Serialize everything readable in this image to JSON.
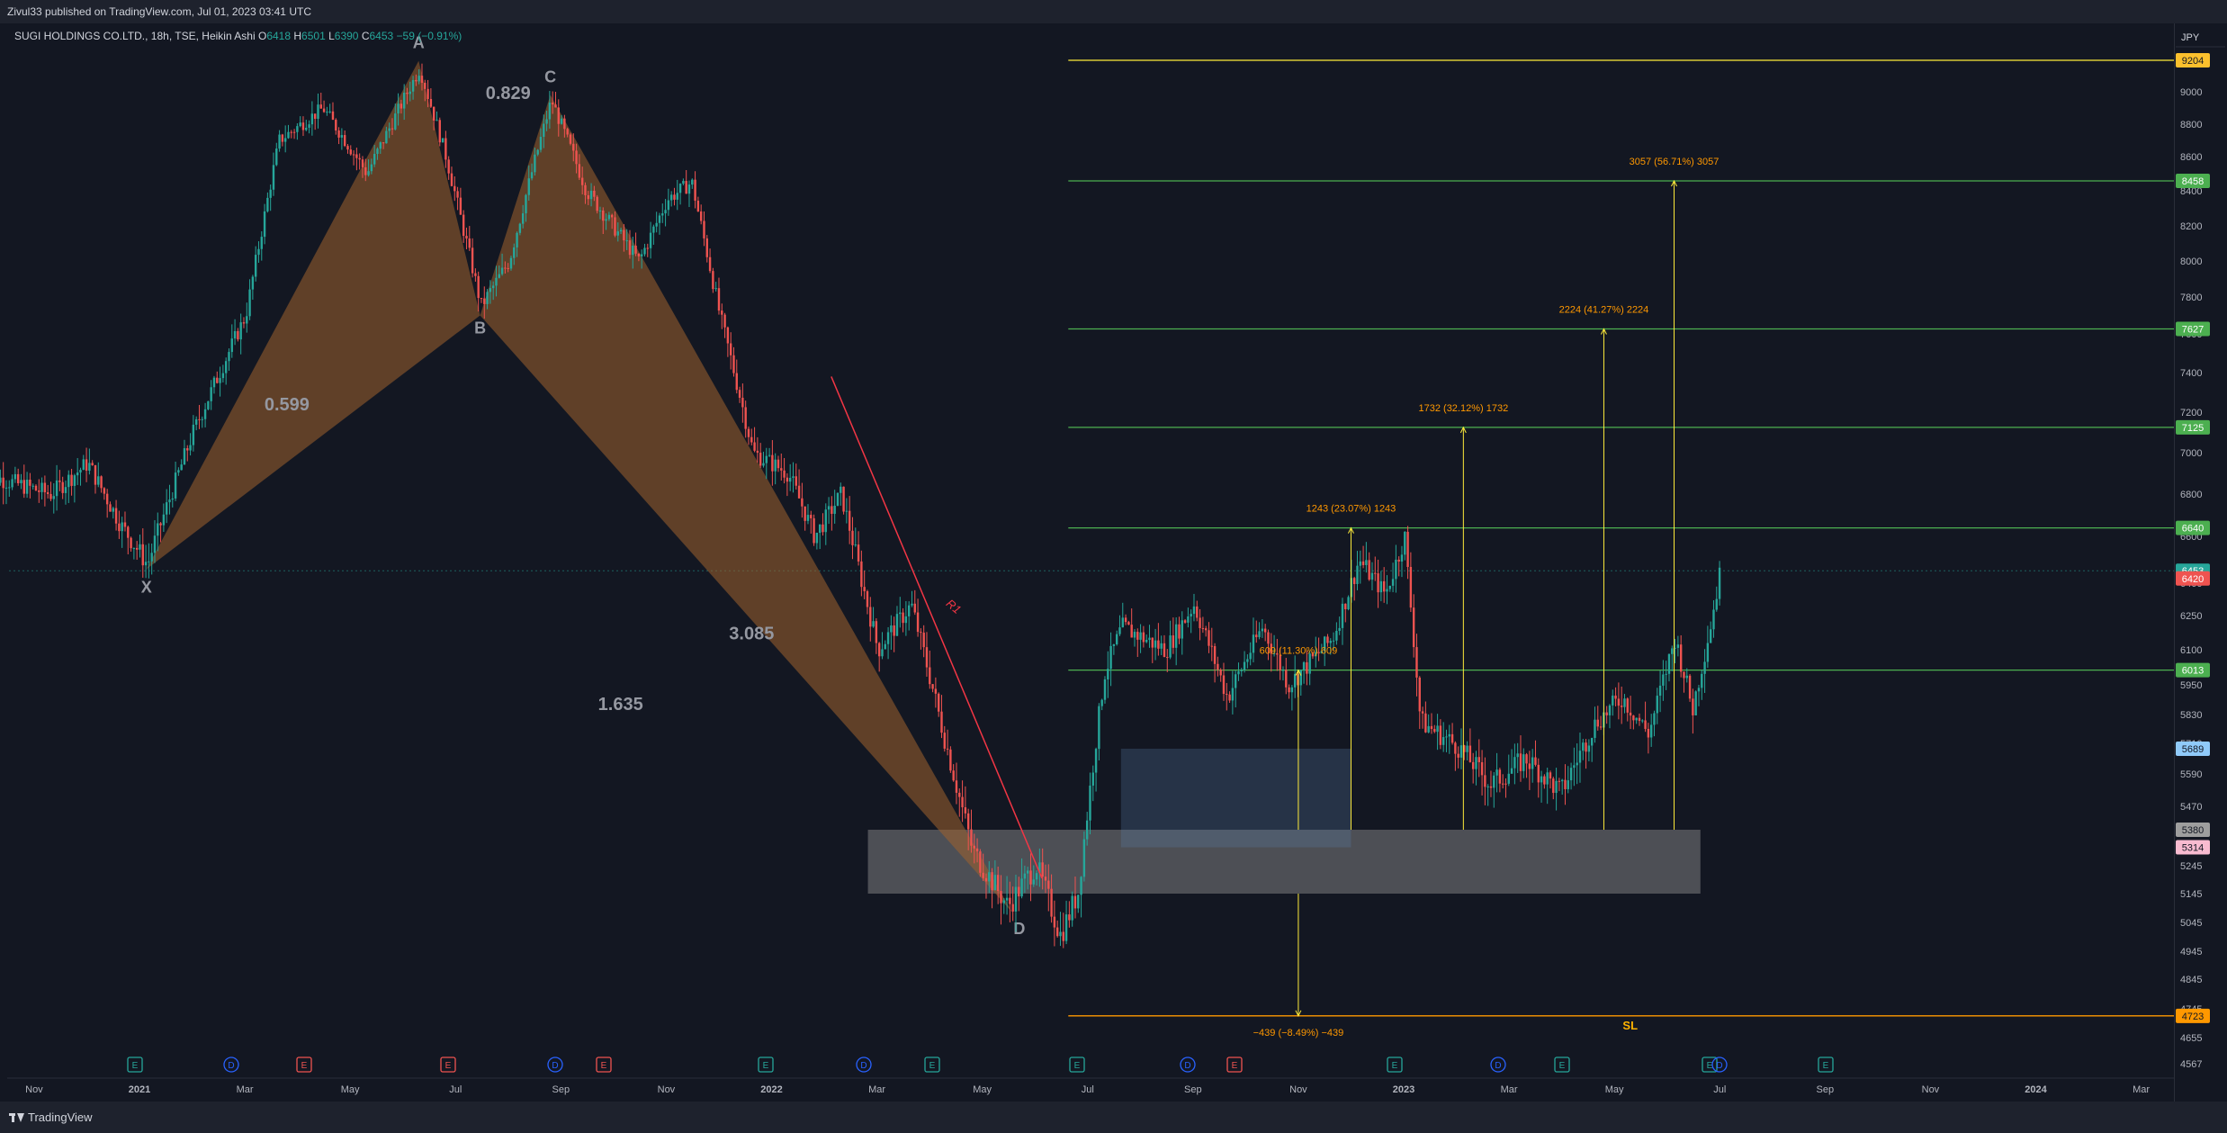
{
  "header": {
    "published_line": "Zivul33 published on TradingView.com, Jul 01, 2023 03:41 UTC"
  },
  "legend": {
    "symbol": "SUGI HOLDINGS CO.LTD., 18h, TSE, Heikin Ashi",
    "o_label": "O",
    "o_value": "6418",
    "h_label": "H",
    "h_value": "6501",
    "l_label": "L",
    "l_value": "6390",
    "c_label": "C",
    "c_value": "6453",
    "change": "−59 (−0.91%)"
  },
  "footer": {
    "brand": "TradingView"
  },
  "colors": {
    "up": "#26a69a",
    "down": "#ef5350",
    "target_line": "#4caf50",
    "bounds": "#ffeb3b",
    "pattern": "#a0622e"
  },
  "chart_data": {
    "type": "candlestick",
    "currency": "JPY",
    "y_ticks": [
      4567,
      4655,
      4745,
      4845,
      4945,
      5045,
      5145,
      5245,
      5380,
      5470,
      5590,
      5710,
      5830,
      5950,
      6100,
      6250,
      6400,
      6600,
      6800,
      7000,
      7200,
      7400,
      7600,
      7800,
      8000,
      8200,
      8400,
      8600,
      8800,
      9000
    ],
    "x_tick_labels": [
      "Nov",
      "2021",
      "Mar",
      "May",
      "Jul",
      "Sep",
      "Nov",
      "2022",
      "Mar",
      "May",
      "Jul",
      "Sep",
      "Nov",
      "2023",
      "Mar",
      "May",
      "Jul",
      "Sep",
      "Nov",
      "2024",
      "Mar"
    ],
    "price_tags": [
      {
        "value": "9204",
        "bg": "#fbc02d",
        "fg": "#131722"
      },
      {
        "value": "8458",
        "bg": "#4caf50",
        "fg": "#ffffff"
      },
      {
        "value": "7627",
        "bg": "#4caf50",
        "fg": "#ffffff"
      },
      {
        "value": "7125",
        "bg": "#4caf50",
        "fg": "#ffffff"
      },
      {
        "value": "6640",
        "bg": "#4caf50",
        "fg": "#ffffff"
      },
      {
        "value": "6453",
        "bg": "#26a69a",
        "fg": "#ffffff"
      },
      {
        "value": "6420",
        "bg": "#ef5350",
        "fg": "#ffffff"
      },
      {
        "value": "6013",
        "bg": "#4caf50",
        "fg": "#ffffff"
      },
      {
        "value": "5689",
        "bg": "#90caf9",
        "fg": "#131722"
      },
      {
        "value": "5380",
        "bg": "#9e9e9e",
        "fg": "#131722"
      },
      {
        "value": "5314",
        "bg": "#f8bbd0",
        "fg": "#131722"
      },
      {
        "value": "4723",
        "bg": "#ff9800",
        "fg": "#131722"
      }
    ],
    "levels": [
      {
        "price": 9204,
        "color": "#ffeb3b"
      },
      {
        "price": 8458,
        "color": "#4caf50"
      },
      {
        "price": 7627,
        "color": "#4caf50"
      },
      {
        "price": 7125,
        "color": "#4caf50"
      },
      {
        "price": 6640,
        "color": "#4caf50"
      },
      {
        "price": 6013,
        "color": "#4caf50"
      },
      {
        "price": 4723,
        "color": "#ff9800"
      }
    ],
    "pattern_points": [
      {
        "label": "X",
        "time": "2021-01",
        "price": 6460
      },
      {
        "label": "A",
        "time": "2021-06",
        "price": 9200
      },
      {
        "label": "B",
        "time": "2021-07",
        "price": 7700
      },
      {
        "label": "C",
        "time": "2021-09",
        "price": 8980
      },
      {
        "label": "D",
        "time": "2022-05",
        "price": 5080
      }
    ],
    "pattern_ratios": [
      "0.829",
      "0.599",
      "3.085",
      "1.635"
    ],
    "measure_labels": [
      "3057 (56.71%) 3057",
      "2224 (41.27%) 2224",
      "1732 (32.12%) 1732",
      "1243 (23.07%) 1243",
      "609 (11.30%) 609",
      "−439 (−8.49%) −439"
    ],
    "stop_label": "SL",
    "trendline_label": "R1",
    "events": [
      "E",
      "D",
      "E",
      "E",
      "D",
      "E",
      "E",
      "D",
      "E",
      "E",
      "D",
      "E",
      "E",
      "D",
      "E",
      "E",
      "D",
      "E"
    ],
    "series_summary": {
      "start": "2020-10",
      "end": "2023-06",
      "low": 4900,
      "high": 9204,
      "last_close": 6453
    }
  }
}
